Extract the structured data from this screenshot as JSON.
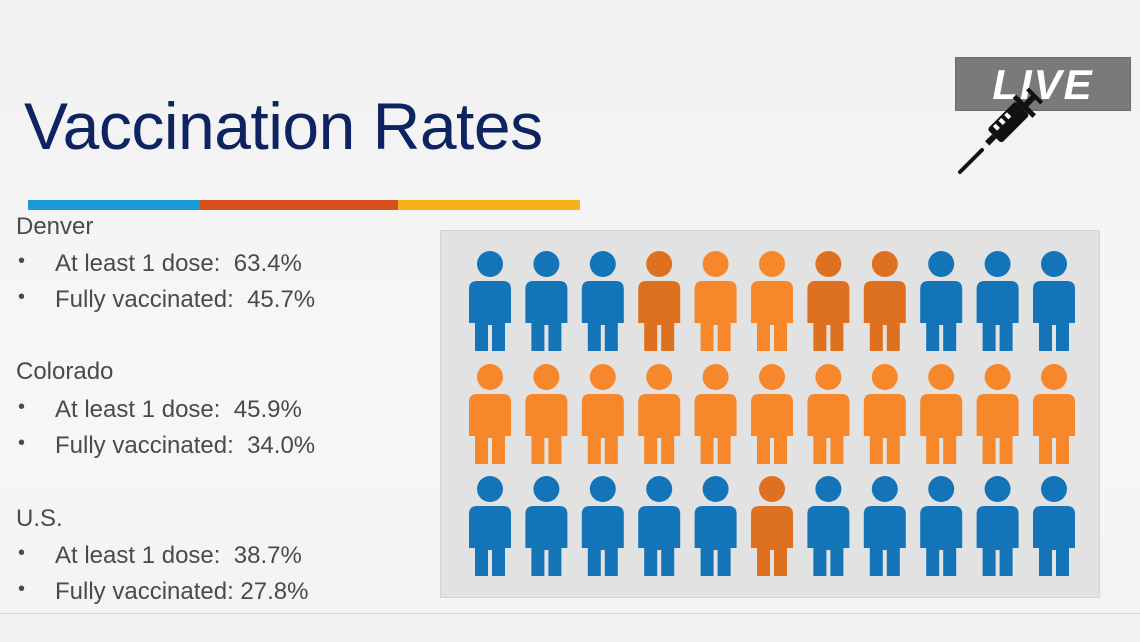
{
  "slide": {
    "title": "Vaccination Rates",
    "badge": "LIVE",
    "badge_icon": "syringe-icon",
    "colors": {
      "title": "#0d2461",
      "rule_blue": "#1b9ad8",
      "rule_red": "#d5501d",
      "rule_yellow": "#f6b11b",
      "person_blue": "#1474b8",
      "person_orange": "#f6872a",
      "person_dark_orange": "#de7120"
    },
    "regions": [
      {
        "name": "Denver",
        "bullets": [
          "At least 1 dose:  63.4%",
          "Fully vaccinated:  45.7%"
        ]
      },
      {
        "name": "Colorado",
        "bullets": [
          "At least 1 dose:  45.9%",
          "Fully vaccinated:  34.0%"
        ]
      },
      {
        "name": "U.S.",
        "bullets": [
          "At least 1 dose:  38.7%",
          "Fully vaccinated: 27.8%"
        ]
      }
    ],
    "people_rows": [
      [
        "blue",
        "blue",
        "blue",
        "dark",
        "orange",
        "orange",
        "dark",
        "dark",
        "blue",
        "blue",
        "blue"
      ],
      [
        "orange",
        "orange",
        "orange",
        "orange",
        "orange",
        "orange",
        "orange",
        "orange",
        "orange",
        "orange",
        "orange"
      ],
      [
        "blue",
        "blue",
        "blue",
        "blue",
        "blue",
        "dark",
        "blue",
        "blue",
        "blue",
        "blue",
        "blue"
      ]
    ]
  }
}
